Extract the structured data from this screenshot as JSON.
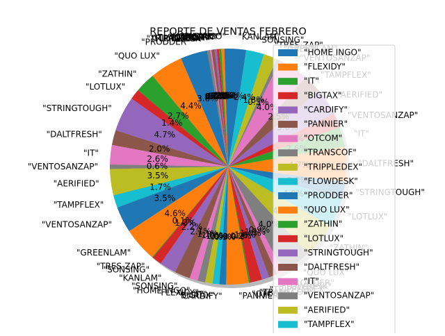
{
  "chart_data": {
    "type": "pie",
    "title": "REPORTE DE VENTAS FEBRERO",
    "shadow": true,
    "start_angle_deg": 90,
    "direction": "counterclockwise",
    "legend_position": "right",
    "palette": [
      "#1f77b4",
      "#ff7f0e",
      "#2ca02c",
      "#d62728",
      "#9467bd",
      "#8c564b",
      "#e377c2",
      "#7f7f7f",
      "#bcbd22",
      "#17becf"
    ],
    "slices": [
      {
        "label": "\"HOME INGO\"",
        "value": 0.5,
        "pct": "0.5%"
      },
      {
        "label": "\"FLEXIDY\"",
        "value": 0.4,
        "pct": "0.4%"
      },
      {
        "label": "\"IT\"",
        "value": 0.3,
        "pct": "0.3%"
      },
      {
        "label": "\"BIGTAX\"",
        "value": 0.3,
        "pct": "0.3%"
      },
      {
        "label": "\"CARDIFY\"",
        "value": 0.3,
        "pct": "0.3%"
      },
      {
        "label": "\"PANNIER\"",
        "value": 0.4,
        "pct": "0.4%"
      },
      {
        "label": "\"OTCOM\"",
        "value": 0.2,
        "pct": "0.2%"
      },
      {
        "label": "\"TRANSCOF\"",
        "value": 0.4,
        "pct": "0.4%"
      },
      {
        "label": "\"TRIPPLEDEX\"",
        "value": 0.0,
        "pct": "0.0%"
      },
      {
        "label": "\"FLOWDESK\"",
        "value": 0.0,
        "pct": "0.0%"
      },
      {
        "label": "\"PRODDER\"",
        "value": 3.6,
        "pct": "3.6%"
      },
      {
        "label": "\"QUO LUX\"",
        "value": 4.4,
        "pct": "4.4%"
      },
      {
        "label": "\"ZATHIN\"",
        "value": 2.7,
        "pct": "2.7%"
      },
      {
        "label": "\"LOTLUX\"",
        "value": 1.4,
        "pct": "1.4%"
      },
      {
        "label": "\"STRINGTOUGH\"",
        "value": 4.7,
        "pct": "4.7%"
      },
      {
        "label": "\"DALTFRESH\"",
        "value": 2.0,
        "pct": "2.0%"
      },
      {
        "label": "\"IT\"",
        "value": 2.6,
        "pct": "2.6%"
      },
      {
        "label": "\"VENTOSANZAP\"",
        "value": 0.6,
        "pct": "0.6%"
      },
      {
        "label": "\"AERIFIED\"",
        "value": 3.5,
        "pct": "3.5%"
      },
      {
        "label": "\"TAMPFLEX\"",
        "value": 1.7,
        "pct": "1.7%"
      },
      {
        "label": "\"VENTOSANZAP\"",
        "value": 3.5,
        "pct": "3.5%"
      },
      {
        "label": "\"GREENLAM\"",
        "value": 4.6,
        "pct": "4.6%"
      },
      {
        "label": "\"TRES-ZAP\"",
        "value": 0.1,
        "pct": "0.1%"
      },
      {
        "label": "\"SONSING\"",
        "value": 1.3,
        "pct": "1.3%"
      },
      {
        "label": "\"KANLAM\"",
        "value": 2.2,
        "pct": "2.2%"
      },
      {
        "label": "\"SONSING\"",
        "value": 2.1,
        "pct": "2.1%"
      },
      {
        "label": "\"HOME INGO\"",
        "value": 1.1,
        "pct": "1.1%"
      },
      {
        "label": "\"FLEXIDY\"",
        "value": 1.0,
        "pct": "1.0%"
      },
      {
        "label": "\"IT\"",
        "value": 1.0,
        "pct": "1.0%"
      },
      {
        "label": "\"BIGTAX\"",
        "value": 0.9,
        "pct": "0.9%"
      },
      {
        "label": "\"CARDIFY\"",
        "value": 0.9,
        "pct": "0.9%"
      },
      {
        "label": "\"PANNIER\"",
        "value": 3.0,
        "pct": "3.0%"
      },
      {
        "label": "\"OTCOM\"",
        "value": 0.2,
        "pct": "0.2%"
      },
      {
        "label": "\"TRANSCOF\"",
        "value": 1.6,
        "pct": "1.6%"
      },
      {
        "label": "\"TRIPPLEDEX\"",
        "value": 1.0,
        "pct": "1.0%"
      },
      {
        "label": "\"FLOWDESK\"",
        "value": 1.1,
        "pct": "1.1%"
      },
      {
        "label": "\"PRODDER\"",
        "value": 0.9,
        "pct": "0.9%"
      },
      {
        "label": "\"QUO LUX\"",
        "value": 4.0,
        "pct": "4.0%"
      },
      {
        "label": "\"ZATHIN\"",
        "value": 4.7,
        "pct": "4.7%"
      },
      {
        "label": "\"LOTLUX\"",
        "value": 4.0,
        "pct": "4.0%"
      },
      {
        "label": "\"STRINGTOUGH\"",
        "value": 2.2,
        "pct": "2.2%"
      },
      {
        "label": "\"DALTFRESH\"",
        "value": 4.7,
        "pct": "4.7%"
      },
      {
        "label": "\"IT\"",
        "value": 2.6,
        "pct": "2.6%"
      },
      {
        "label": "\"VENTOSANZAP\"",
        "value": 2.0,
        "pct": "2.0%"
      },
      {
        "label": "\"AERIFIED\"",
        "value": 3.6,
        "pct": "3.6%"
      },
      {
        "label": "\"TAMPFLEX\"",
        "value": 2.5,
        "pct": "2.5%"
      },
      {
        "label": "\"VENTOSANZAP\"",
        "value": 4.0,
        "pct": "4.0%"
      },
      {
        "label": "\"GREENLAM\"",
        "value": 0.5,
        "pct": "0.5%"
      },
      {
        "label": "\"TRES-ZAP\"",
        "value": 1.8,
        "pct": "1.8%"
      },
      {
        "label": "\"SONSING\"",
        "value": 2.4,
        "pct": "2.4%"
      },
      {
        "label": "\"KANLAM\"",
        "value": 2.4,
        "pct": "2.4%"
      }
    ],
    "legend": [
      "\"HOME INGO\"",
      "\"FLEXIDY\"",
      "\"IT\"",
      "\"BIGTAX\"",
      "\"CARDIFY\"",
      "\"PANNIER\"",
      "\"OTCOM\"",
      "\"TRANSCOF\"",
      "\"TRIPPLEDEX\"",
      "\"FLOWDESK\"",
      "\"PRODDER\"",
      "\"QUO LUX\"",
      "\"ZATHIN\"",
      "\"LOTLUX\"",
      "\"STRINGTOUGH\"",
      "\"DALTFRESH\"",
      "\"IT\"",
      "\"VENTOSANZAP\"",
      "\"AERIFIED\"",
      "\"TAMPFLEX\""
    ]
  }
}
